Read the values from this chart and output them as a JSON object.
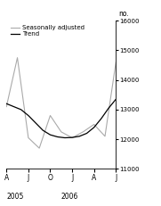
{
  "ylabel": "no.",
  "xlim": [
    0,
    5
  ],
  "ylim": [
    11000,
    16000
  ],
  "yticks": [
    11000,
    12000,
    13000,
    14000,
    15000,
    16000
  ],
  "xtick_labels": [
    "A",
    "J",
    "O",
    "J",
    "A",
    "J"
  ],
  "xtick_positions": [
    0,
    1,
    2,
    3,
    4,
    5
  ],
  "year_labels": [
    [
      "2005",
      0.0
    ],
    [
      "2006",
      2.5
    ]
  ],
  "trend_x": [
    0,
    0.333,
    0.667,
    1.0,
    1.333,
    1.667,
    2.0,
    2.333,
    2.667,
    3.0,
    3.333,
    3.667,
    4.0,
    4.333,
    4.667,
    5.0
  ],
  "trend_y": [
    13200,
    13100,
    13000,
    12800,
    12550,
    12300,
    12150,
    12080,
    12050,
    12060,
    12100,
    12200,
    12400,
    12700,
    13050,
    13350
  ],
  "seasonal_x": [
    0,
    0.5,
    1.0,
    1.5,
    2.0,
    2.5,
    3.0,
    3.5,
    4.0,
    4.5,
    5.0
  ],
  "seasonal_y": [
    13100,
    14750,
    12050,
    11700,
    12800,
    12250,
    12050,
    12250,
    12500,
    12100,
    14600
  ],
  "trend_color": "#000000",
  "seasonal_color": "#aaaaaa",
  "background_color": "#ffffff",
  "legend_trend": "Trend",
  "legend_seasonal": "Seasonally adjusted",
  "trend_lw": 0.9,
  "seasonal_lw": 0.8
}
